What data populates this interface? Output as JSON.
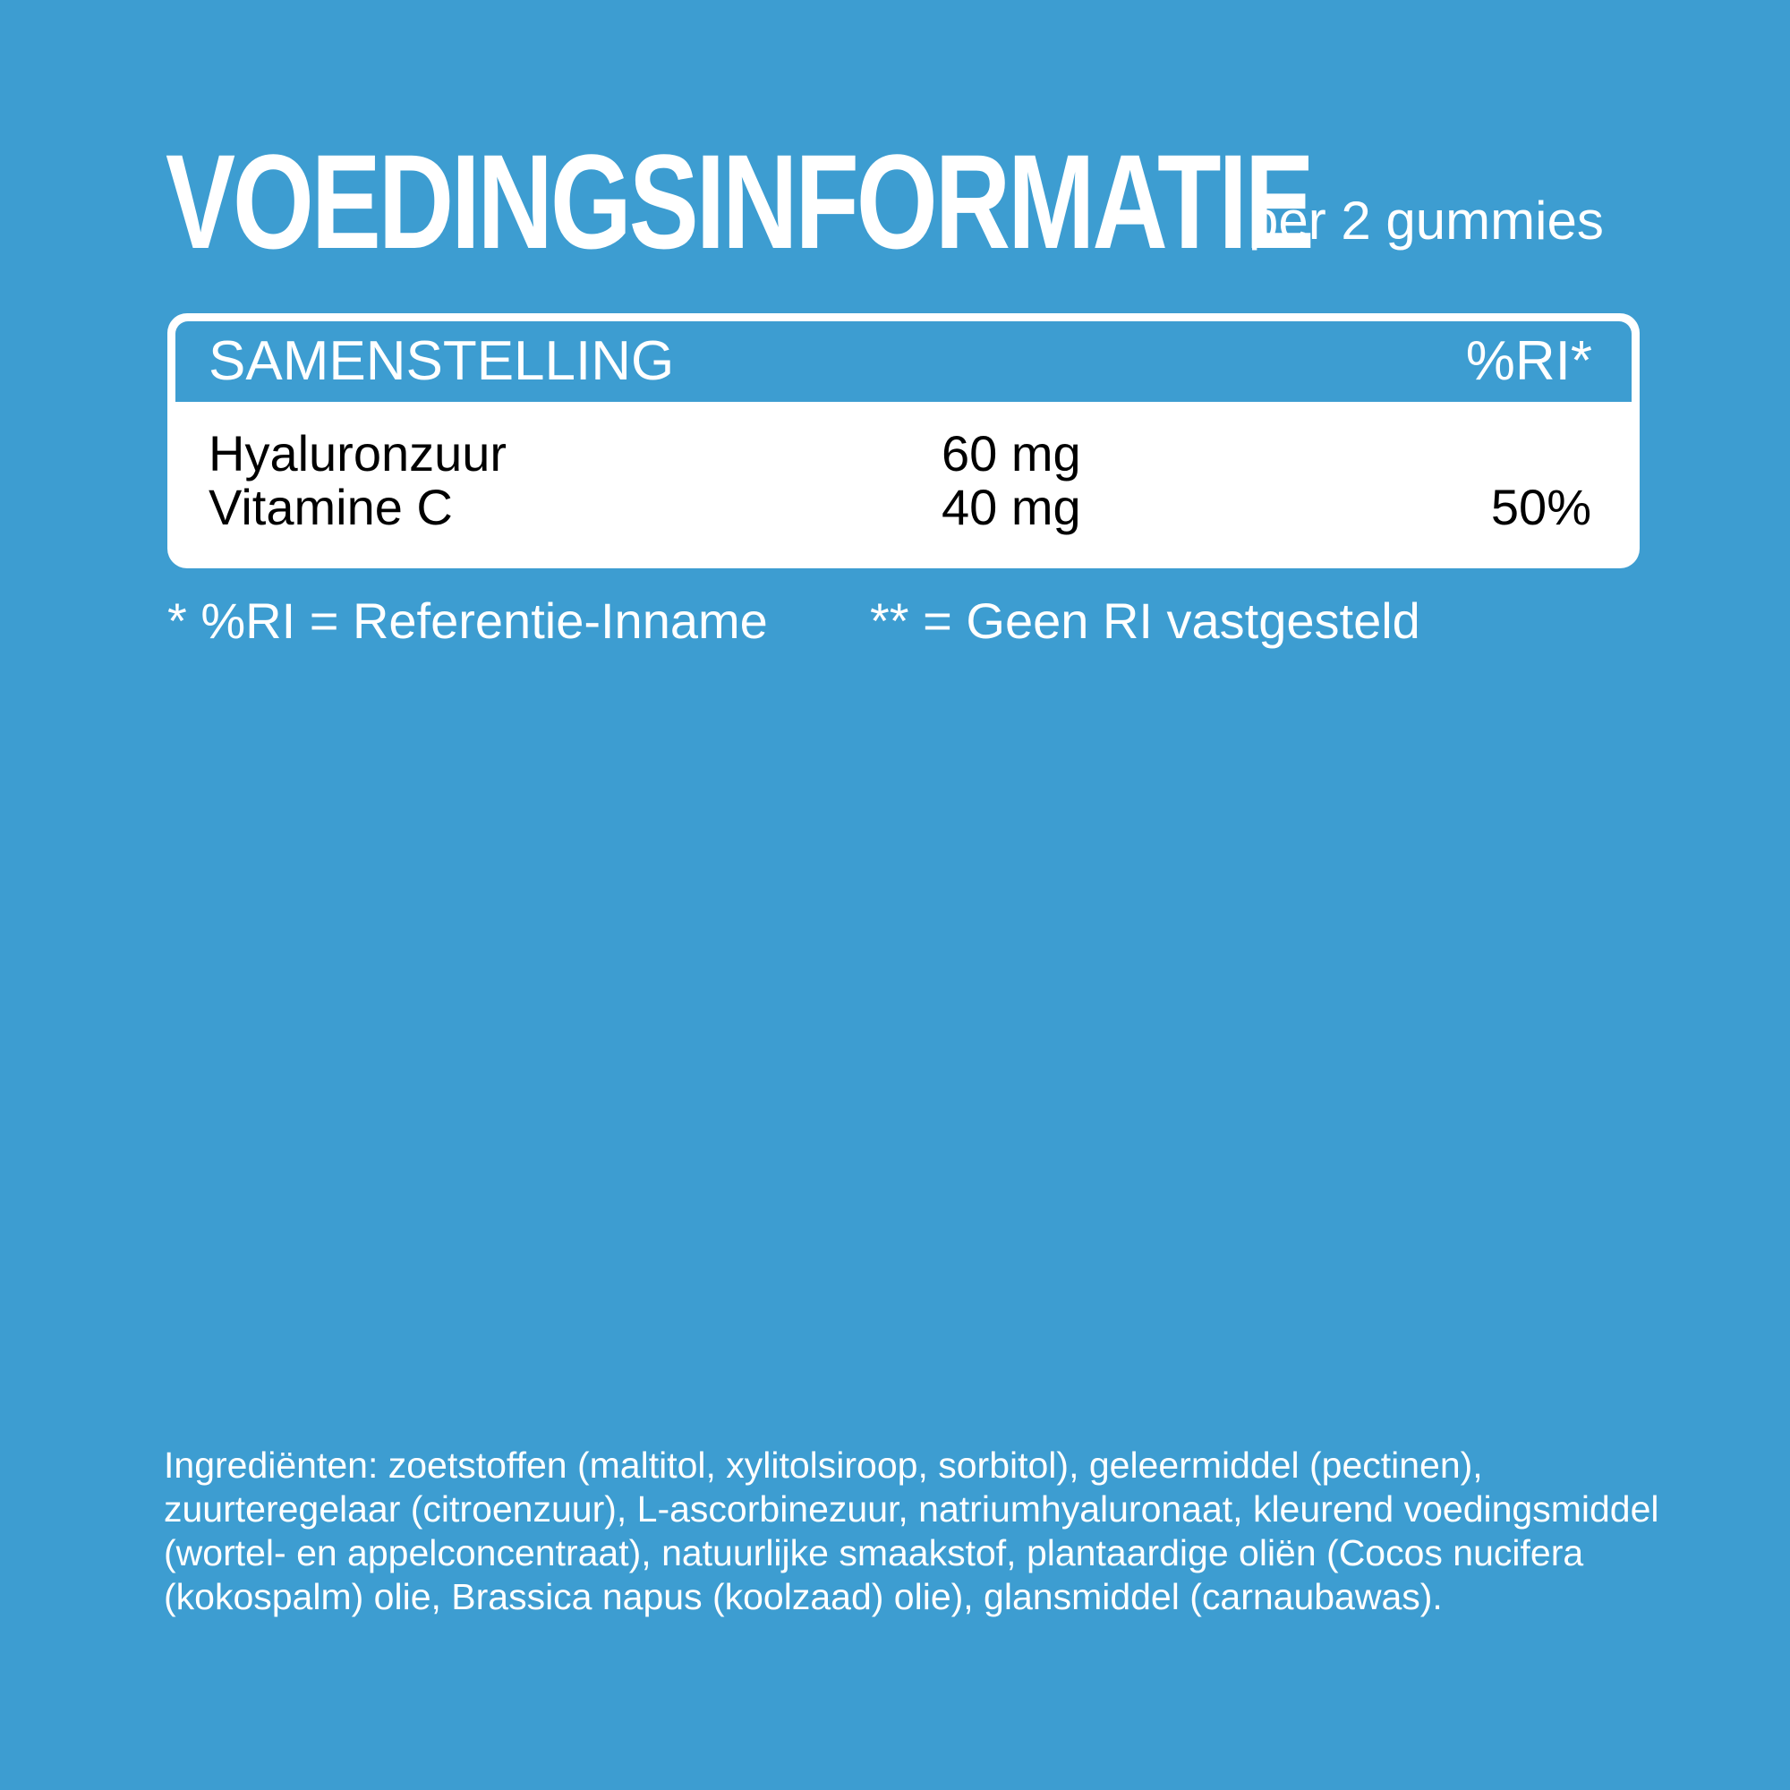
{
  "title": "VOEDINGSINFORMATIE",
  "subtitle": "per 2 gummies",
  "table": {
    "header": {
      "composition": "SAMENSTELLING",
      "ri": "%RI*"
    },
    "rows": [
      {
        "name": "Hyaluronzuur",
        "amount": "60 mg",
        "ri": ""
      },
      {
        "name": "Vitamine C",
        "amount": "40 mg",
        "ri": "50%"
      }
    ]
  },
  "footnotes": [
    "* %RI = Referentie-Inname",
    "** = Geen RI vastgesteld"
  ],
  "ingredients": "Ingrediënten: zoetstoffen (maltitol, xylitolsiroop, sorbitol), geleermiddel (pectinen), zuurteregelaar (citroenzuur), L-ascorbinezuur, natriumhyaluronaat, kleurend voedingsmiddel (wortel- en appelconcentraat), natuurlijke smaakstof, plantaardige oliën (Cocos nucifera (kokospalm) olie, Brassica napus (koolzaad) olie), glansmiddel (carnaubawas).",
  "colors": {
    "background": "#3d9dd1",
    "panel": "#ffffff"
  }
}
